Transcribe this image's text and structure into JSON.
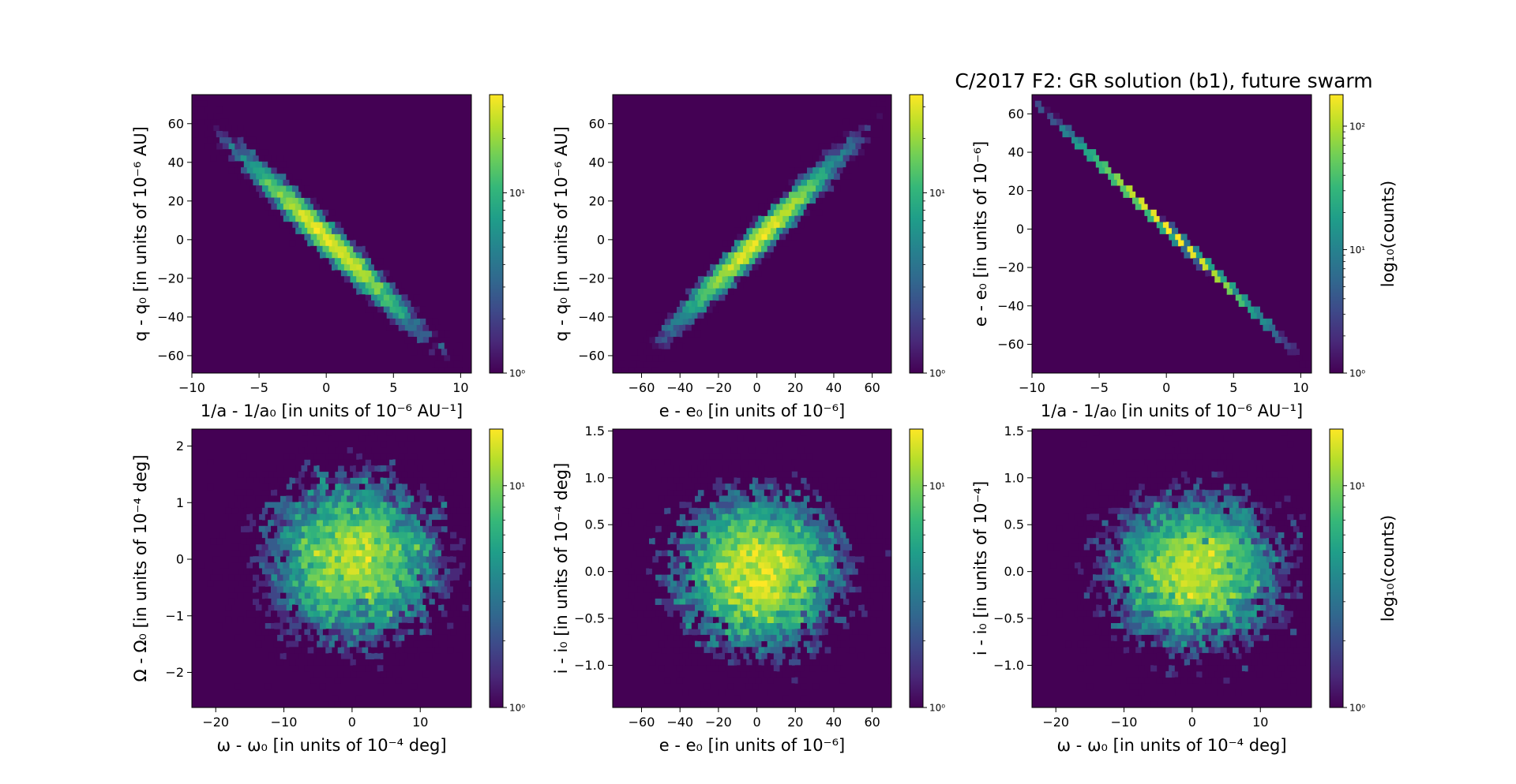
{
  "figure": {
    "title": "C/2017 F2: GR solution (b1), future swarm"
  },
  "colors": {
    "background": "#440154",
    "viridis": [
      "#440154",
      "#482878",
      "#3e4989",
      "#31688e",
      "#26828e",
      "#1f9e89",
      "#35b779",
      "#6ece58",
      "#b5de2b",
      "#fde725"
    ]
  },
  "chart_data": [
    {
      "type": "hexbin",
      "panel": "top-left",
      "xlabel": "1/a - 1/a₀ [in units of 10⁻⁶ AU⁻¹]",
      "ylabel": "q - q₀ [in units of 10⁻⁶ AU]",
      "xlim": [
        -10,
        10.8
      ],
      "ylim": [
        -69,
        75
      ],
      "xticks": [
        -10,
        -5,
        0,
        5,
        10
      ],
      "xtick_labels": [
        "−10",
        "−5",
        "0",
        "5",
        "10"
      ],
      "yticks": [
        -60,
        -40,
        -20,
        0,
        20,
        40,
        60
      ],
      "ytick_labels": [
        "−60",
        "−40",
        "−20",
        "0",
        "20",
        "40",
        "60"
      ],
      "relation": {
        "slope": -6.7,
        "sx": 3.3,
        "scatter": 4.5
      },
      "colorbar": {
        "scale": "log",
        "label": "",
        "vmin": 1,
        "vmax": 35,
        "ticks": [
          1,
          10
        ],
        "tick_labels": [
          "10⁰",
          "10¹"
        ]
      }
    },
    {
      "type": "hexbin",
      "panel": "top-middle",
      "xlabel": "e - e₀ [in units of 10⁻⁶]",
      "ylabel": "q - q₀ [in units of 10⁻⁶ AU]",
      "xlim": [
        -75,
        70
      ],
      "ylim": [
        -69,
        75
      ],
      "xticks": [
        -60,
        -40,
        -20,
        0,
        20,
        40,
        60
      ],
      "xtick_labels": [
        "−60",
        "−40",
        "−20",
        "0",
        "20",
        "40",
        "60"
      ],
      "yticks": [
        -60,
        -40,
        -20,
        0,
        20,
        40,
        60
      ],
      "ytick_labels": [
        "−60",
        "−40",
        "−20",
        "0",
        "20",
        "40",
        "60"
      ],
      "relation": {
        "slope": 1.0,
        "sx": 22,
        "scatter": 4.5
      },
      "colorbar": {
        "scale": "log",
        "label": "",
        "vmin": 1,
        "vmax": 35,
        "ticks": [
          1,
          10
        ],
        "tick_labels": [
          "10⁰",
          "10¹"
        ]
      }
    },
    {
      "type": "hexbin",
      "panel": "top-right",
      "xlabel": "1/a - 1/a₀ [in units of 10⁻⁶ AU⁻¹]",
      "ylabel": "e - e₀ [in units of 10⁻⁶]",
      "xlim": [
        -10,
        10.8
      ],
      "ylim": [
        -75,
        70
      ],
      "xticks": [
        -10,
        -5,
        0,
        5,
        10
      ],
      "xtick_labels": [
        "−10",
        "−5",
        "0",
        "5",
        "10"
      ],
      "yticks": [
        -60,
        -40,
        -20,
        0,
        20,
        40,
        60
      ],
      "ytick_labels": [
        "−60",
        "−40",
        "−20",
        "0",
        "20",
        "40",
        "60"
      ],
      "relation": {
        "slope": -6.75,
        "sx": 3.3,
        "scatter": 0.4
      },
      "colorbar": {
        "scale": "log",
        "label": "log₁₀(counts)",
        "vmin": 1,
        "vmax": 180,
        "ticks": [
          1,
          10,
          100
        ],
        "tick_labels": [
          "10⁰",
          "10¹",
          "10²"
        ]
      }
    },
    {
      "type": "hexbin",
      "panel": "bottom-left",
      "xlabel": "ω - ω₀ [in units of 10⁻⁴ deg]",
      "ylabel": "Ω - Ω₀ [in units of 10⁻⁴ deg]",
      "xlim": [
        -23.5,
        17.5
      ],
      "ylim": [
        -2.62,
        2.3
      ],
      "xticks": [
        -20,
        -10,
        0,
        10
      ],
      "xtick_labels": [
        "−20",
        "−10",
        "0",
        "10"
      ],
      "yticks": [
        -2,
        -1,
        0,
        1,
        2
      ],
      "ytick_labels": [
        "−2",
        "−1",
        "0",
        "1",
        "2"
      ],
      "relation": {
        "slope": 0,
        "sx": 6.5,
        "scatter": 0.75
      },
      "colorbar": {
        "scale": "log",
        "label": "",
        "vmin": 1,
        "vmax": 18,
        "ticks": [
          1,
          10
        ],
        "tick_labels": [
          "10⁰",
          "10¹"
        ]
      }
    },
    {
      "type": "hexbin",
      "panel": "bottom-middle",
      "xlabel": "e - e₀ [in units of 10⁻⁶]",
      "ylabel": "i - i₀ [in units of 10⁻⁴ deg]",
      "xlim": [
        -75,
        70
      ],
      "ylim": [
        -1.45,
        1.52
      ],
      "xticks": [
        -60,
        -40,
        -20,
        0,
        20,
        40,
        60
      ],
      "xtick_labels": [
        "−60",
        "−40",
        "−20",
        "0",
        "20",
        "40",
        "60"
      ],
      "yticks": [
        -1.0,
        -0.5,
        0.0,
        0.5,
        1.0,
        1.5
      ],
      "ytick_labels": [
        "−1.0",
        "−0.5",
        "0.0",
        "0.5",
        "1.0",
        "1.5"
      ],
      "relation": {
        "slope": 0,
        "sx": 22,
        "scatter": 0.42
      },
      "colorbar": {
        "scale": "log",
        "label": "",
        "vmin": 1,
        "vmax": 18,
        "ticks": [
          1,
          10
        ],
        "tick_labels": [
          "10⁰",
          "10¹"
        ]
      }
    },
    {
      "type": "hexbin",
      "panel": "bottom-right",
      "xlabel": "ω - ω₀ [in units of 10⁻⁴ deg]",
      "ylabel": "i - i₀ [in units of 10⁻⁴]",
      "xlim": [
        -23.5,
        17.5
      ],
      "ylim": [
        -1.45,
        1.52
      ],
      "xticks": [
        -20,
        -10,
        0,
        10
      ],
      "xtick_labels": [
        "−20",
        "−10",
        "0",
        "10"
      ],
      "yticks": [
        -1.0,
        -0.5,
        0.0,
        0.5,
        1.0,
        1.5
      ],
      "ytick_labels": [
        "−1.0",
        "−0.5",
        "0.0",
        "0.5",
        "1.0",
        "1.5"
      ],
      "relation": {
        "slope": 0,
        "sx": 6.5,
        "scatter": 0.42
      },
      "colorbar": {
        "scale": "log",
        "label": "log₁₀(counts)",
        "vmin": 1,
        "vmax": 18,
        "ticks": [
          1,
          10
        ],
        "tick_labels": [
          "10⁰",
          "10¹"
        ]
      }
    }
  ]
}
